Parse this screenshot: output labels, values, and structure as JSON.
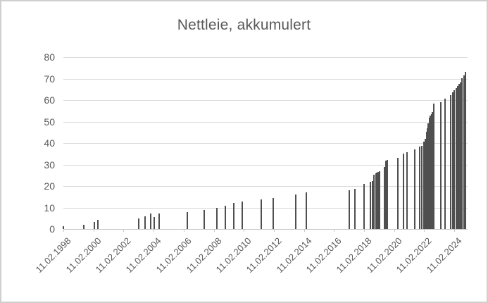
{
  "chart": {
    "title": "Nettleie, akkumulert",
    "colors": {
      "bar": "#4f4f4f",
      "grid": "#d9d9d9",
      "axis": "#c9c9c9",
      "text": "#595959",
      "border": "#cfcfcf",
      "background": "#ffffff"
    }
  },
  "chart_data": {
    "type": "bar",
    "title": "Nettleie, akkumulert",
    "xlabel": "",
    "ylabel": "",
    "ylim": [
      0,
      80
    ],
    "y_ticks": [
      0,
      10,
      20,
      30,
      40,
      50,
      60,
      70,
      80
    ],
    "grid": true,
    "legend": "none",
    "x_domain_years": [
      1998.115,
      2025.0
    ],
    "x_ticks": [
      {
        "t": 1998.115,
        "label": "11.02.1998"
      },
      {
        "t": 2000.115,
        "label": "11.02.2000"
      },
      {
        "t": 2002.115,
        "label": "11.02.2002"
      },
      {
        "t": 2004.115,
        "label": "11.02.2004"
      },
      {
        "t": 2006.115,
        "label": "11.02.2006"
      },
      {
        "t": 2008.115,
        "label": "11.02.2008"
      },
      {
        "t": 2010.115,
        "label": "11.02.2010"
      },
      {
        "t": 2012.115,
        "label": "11.02.2012"
      },
      {
        "t": 2014.115,
        "label": "11.02.2014"
      },
      {
        "t": 2016.115,
        "label": "11.02.2016"
      },
      {
        "t": 2018.115,
        "label": "11.02.2018"
      },
      {
        "t": 2020.115,
        "label": "11.02.2020"
      },
      {
        "t": 2022.115,
        "label": "11.02.2022"
      },
      {
        "t": 2024.115,
        "label": "11.02.2024"
      }
    ],
    "points": [
      {
        "t": 1998.12,
        "value": 1.3
      },
      {
        "t": 1999.48,
        "value": 2.1
      },
      {
        "t": 2000.17,
        "value": 3.4
      },
      {
        "t": 2000.42,
        "value": 4.3
      },
      {
        "t": 2003.15,
        "value": 4.9
      },
      {
        "t": 2003.54,
        "value": 6.0
      },
      {
        "t": 2003.92,
        "value": 7.3
      },
      {
        "t": 2004.14,
        "value": 5.7
      },
      {
        "t": 2004.5,
        "value": 7.3
      },
      {
        "t": 2006.34,
        "value": 8.0
      },
      {
        "t": 2007.48,
        "value": 9.0
      },
      {
        "t": 2008.31,
        "value": 9.9
      },
      {
        "t": 2008.89,
        "value": 10.9
      },
      {
        "t": 2009.47,
        "value": 12.0
      },
      {
        "t": 2010.03,
        "value": 12.9
      },
      {
        "t": 2011.27,
        "value": 13.8
      },
      {
        "t": 2012.06,
        "value": 14.5
      },
      {
        "t": 2013.58,
        "value": 16.1
      },
      {
        "t": 2014.28,
        "value": 17.1
      },
      {
        "t": 2017.14,
        "value": 17.9
      },
      {
        "t": 2017.49,
        "value": 18.8
      },
      {
        "t": 2018.11,
        "value": 20.9
      },
      {
        "t": 2018.53,
        "value": 22.0
      },
      {
        "t": 2018.66,
        "value": 22.4
      },
      {
        "t": 2018.77,
        "value": 25.1
      },
      {
        "t": 2018.9,
        "value": 25.8
      },
      {
        "t": 2018.97,
        "value": 26.2
      },
      {
        "t": 2019.04,
        "value": 26.5
      },
      {
        "t": 2019.14,
        "value": 26.8
      },
      {
        "t": 2019.47,
        "value": 29.0
      },
      {
        "t": 2019.59,
        "value": 31.8
      },
      {
        "t": 2019.68,
        "value": 32.1
      },
      {
        "t": 2020.38,
        "value": 33.2
      },
      {
        "t": 2020.75,
        "value": 35.0
      },
      {
        "t": 2020.97,
        "value": 35.8
      },
      {
        "t": 2021.5,
        "value": 36.9
      },
      {
        "t": 2021.81,
        "value": 38.3
      },
      {
        "t": 2021.95,
        "value": 38.6
      },
      {
        "t": 2022.08,
        "value": 40.8
      },
      {
        "t": 2022.18,
        "value": 41.9
      },
      {
        "t": 2022.26,
        "value": 45.4
      },
      {
        "t": 2022.33,
        "value": 46.8
      },
      {
        "t": 2022.4,
        "value": 49.2
      },
      {
        "t": 2022.47,
        "value": 51.7
      },
      {
        "t": 2022.54,
        "value": 52.8
      },
      {
        "t": 2022.61,
        "value": 53.6
      },
      {
        "t": 2022.68,
        "value": 54.4
      },
      {
        "t": 2022.77,
        "value": 58.3
      },
      {
        "t": 2023.21,
        "value": 59.1
      },
      {
        "t": 2023.49,
        "value": 60.7
      },
      {
        "t": 2023.89,
        "value": 62.3
      },
      {
        "t": 2024.02,
        "value": 63.5
      },
      {
        "t": 2024.12,
        "value": 64.6
      },
      {
        "t": 2024.23,
        "value": 65.7
      },
      {
        "t": 2024.34,
        "value": 66.4
      },
      {
        "t": 2024.45,
        "value": 67.5
      },
      {
        "t": 2024.52,
        "value": 68.3
      },
      {
        "t": 2024.64,
        "value": 70.3
      },
      {
        "t": 2024.76,
        "value": 71.6
      },
      {
        "t": 2024.86,
        "value": 73.2
      }
    ]
  }
}
